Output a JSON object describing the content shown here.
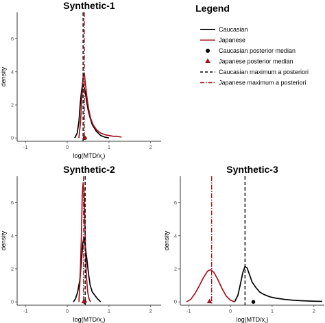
{
  "colors": {
    "caucasian": "#000000",
    "japanese": "#a6121c"
  },
  "legend": {
    "title": "Legend",
    "entries": [
      {
        "label": "Caucasian",
        "kind": "line",
        "color": "#000000"
      },
      {
        "label": "Japanese",
        "kind": "line",
        "color": "#a6121c"
      },
      {
        "label": "Caucasian posterior median",
        "kind": "circle",
        "color": "#000000"
      },
      {
        "label": "Japanese posterior median",
        "kind": "triangle",
        "color": "#a6121c"
      },
      {
        "label": "Caucasian maximum a posteriori",
        "kind": "dashed",
        "color": "#000000"
      },
      {
        "label": "Japanese maximum a posteriori",
        "kind": "dashdot",
        "color": "#a6121c"
      }
    ]
  },
  "chart_data": [
    {
      "type": "line",
      "title": "Synthetic-1",
      "xlabel": "log(MTD/x_r)",
      "ylabel": "density",
      "xlim": [
        -1.2,
        2.25
      ],
      "ylim": [
        -0.2,
        7.6
      ],
      "xticks": [
        -1,
        0,
        1,
        2
      ],
      "yticks": [
        0,
        2,
        4,
        6
      ],
      "series": [
        {
          "name": "Caucasian",
          "color": "#000000",
          "x": [
            0.18,
            0.24,
            0.28,
            0.31,
            0.34,
            0.37,
            0.4,
            0.43,
            0.46,
            0.5,
            0.55,
            0.6,
            0.7,
            0.8,
            0.9,
            1.0
          ],
          "y": [
            0.0,
            0.3,
            1.0,
            2.0,
            2.8,
            3.3,
            3.1,
            2.8,
            2.3,
            1.7,
            1.2,
            0.8,
            0.4,
            0.15,
            0.05,
            0.0
          ]
        },
        {
          "name": "Japanese",
          "color": "#a6121c",
          "x": [
            0.28,
            0.32,
            0.35,
            0.38,
            0.41,
            0.44,
            0.47,
            0.51,
            0.56,
            0.62,
            0.7,
            0.8,
            0.9,
            1.0,
            1.1,
            1.2,
            1.3
          ],
          "y": [
            0.0,
            1.0,
            2.5,
            3.7,
            3.9,
            3.2,
            2.5,
            1.8,
            1.2,
            0.8,
            0.5,
            0.3,
            0.2,
            0.15,
            0.1,
            0.1,
            0.05
          ]
        }
      ],
      "caucasian_median": 0.42,
      "japanese_median": 0.42,
      "caucasian_map": 0.38,
      "japanese_map": 0.41
    },
    {
      "type": "line",
      "title": "Synthetic-2",
      "xlabel": "log(MTD/x_r)",
      "ylabel": "density",
      "xlim": [
        -1.2,
        2.25
      ],
      "ylim": [
        -0.2,
        7.6
      ],
      "xticks": [
        -1,
        0,
        1,
        2
      ],
      "yticks": [
        0,
        2,
        4,
        6
      ],
      "series": [
        {
          "name": "Caucasian",
          "color": "#000000",
          "x": [
            0.15,
            0.2,
            0.25,
            0.3,
            0.34,
            0.37,
            0.4,
            0.43,
            0.47,
            0.51,
            0.55,
            0.6,
            0.66,
            0.72,
            0.8
          ],
          "y": [
            0.0,
            0.2,
            0.6,
            1.3,
            2.4,
            3.5,
            3.9,
            3.4,
            2.6,
            1.7,
            1.0,
            0.6,
            0.4,
            0.2,
            0.0
          ]
        },
        {
          "name": "Japanese",
          "color": "#a6121c",
          "x": [
            0.28,
            0.31,
            0.34,
            0.36,
            0.38,
            0.4,
            0.42,
            0.44,
            0.46,
            0.49,
            0.52,
            0.56
          ],
          "y": [
            0.0,
            1.5,
            4.0,
            6.5,
            7.2,
            6.8,
            5.0,
            3.0,
            1.5,
            0.6,
            0.2,
            0.0
          ]
        }
      ],
      "caucasian_median": 0.42,
      "japanese_median": 0.4,
      "caucasian_map": 0.43,
      "japanese_map": 0.39
    },
    {
      "type": "line",
      "title": "Synthetic-3",
      "xlabel": "log(MTD/x_r)",
      "ylabel": "density",
      "xlim": [
        -1.2,
        2.25
      ],
      "ylim": [
        -0.2,
        7.6
      ],
      "xticks": [
        -1,
        0,
        1,
        2
      ],
      "yticks": [
        0,
        2,
        4,
        6
      ],
      "series": [
        {
          "name": "Caucasian",
          "color": "#000000",
          "x": [
            0.1,
            0.18,
            0.25,
            0.3,
            0.35,
            0.4,
            0.45,
            0.52,
            0.6,
            0.7,
            0.8,
            0.95,
            1.1,
            1.3,
            1.5,
            1.7,
            2.0,
            2.2
          ],
          "y": [
            0.0,
            0.4,
            1.2,
            1.8,
            2.15,
            2.05,
            1.7,
            1.2,
            0.9,
            0.6,
            0.45,
            0.3,
            0.22,
            0.15,
            0.1,
            0.07,
            0.04,
            0.03
          ]
        },
        {
          "name": "Japanese",
          "color": "#a6121c",
          "x": [
            -1.05,
            -0.95,
            -0.85,
            -0.75,
            -0.65,
            -0.55,
            -0.48,
            -0.4,
            -0.3,
            -0.2,
            -0.1,
            0.0,
            0.1
          ],
          "y": [
            0.0,
            0.15,
            0.5,
            0.95,
            1.45,
            1.85,
            1.95,
            1.8,
            1.35,
            0.8,
            0.35,
            0.1,
            0.0
          ]
        }
      ],
      "caucasian_median": 0.55,
      "japanese_median": -0.5,
      "caucasian_map": 0.35,
      "japanese_map": -0.45
    }
  ]
}
